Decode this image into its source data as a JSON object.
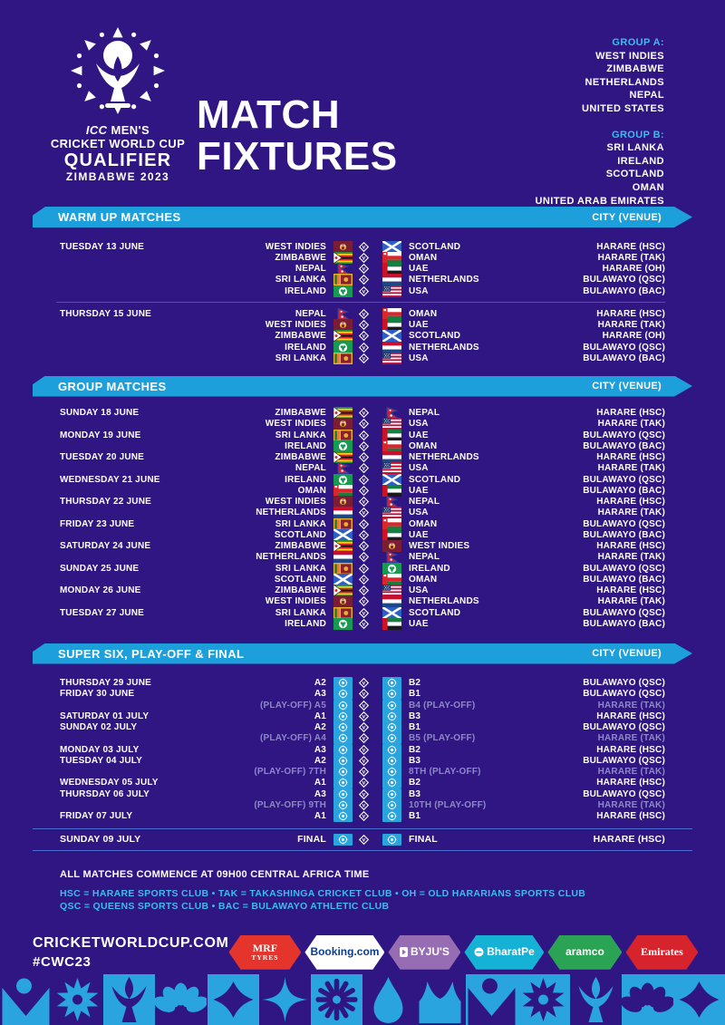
{
  "page": {
    "background": "#301683",
    "accent_cyan": "#1d9fdc",
    "cyan_text": "#3cbcee"
  },
  "header": {
    "logo": {
      "line1": "ICC MEN'S",
      "line2": "CRICKET WORLD CUP",
      "line3": "QUALIFIER",
      "line4": "ZIMBABWE 2023"
    },
    "title_line1": "MATCH",
    "title_line2": "FIXTURES",
    "groups": [
      {
        "label": "GROUP A:",
        "teams": [
          "WEST INDIES",
          "ZIMBABWE",
          "NETHERLANDS",
          "NEPAL",
          "UNITED STATES"
        ]
      },
      {
        "label": "GROUP B:",
        "teams": [
          "SRI LANKA",
          "IRELAND",
          "SCOTLAND",
          "OMAN",
          "UNITED ARAB EMIRATES"
        ]
      }
    ]
  },
  "sections": [
    {
      "title": "WARM UP MATCHES",
      "venue_header": "CITY (VENUE)",
      "blocks": [
        [
          {
            "date": "TUESDAY 13 JUNE",
            "home": "WEST INDIES",
            "hf": "WIN",
            "af": "SCO",
            "away": "SCOTLAND",
            "venue": "HARARE (HSC)"
          },
          {
            "date": "",
            "home": "ZIMBABWE",
            "hf": "ZIM",
            "af": "OMA",
            "away": "OMAN",
            "venue": "HARARE (TAK)"
          },
          {
            "date": "",
            "home": "NEPAL",
            "hf": "NEP",
            "af": "UAE",
            "away": "UAE",
            "venue": "HARARE (OH)"
          },
          {
            "date": "",
            "home": "SRI LANKA",
            "hf": "SRI",
            "af": "NED",
            "away": "NETHERLANDS",
            "venue": "BULAWAYO (QSC)"
          },
          {
            "date": "",
            "home": "IRELAND",
            "hf": "IRE",
            "af": "USA",
            "away": "USA",
            "venue": "BULAWAYO (BAC)"
          }
        ],
        [
          {
            "date": "THURSDAY 15 JUNE",
            "home": "NEPAL",
            "hf": "NEP",
            "af": "OMA",
            "away": "OMAN",
            "venue": "HARARE (HSC)"
          },
          {
            "date": "",
            "home": "WEST INDIES",
            "hf": "WIN",
            "af": "UAE",
            "away": "UAE",
            "venue": "HARARE (TAK)"
          },
          {
            "date": "",
            "home": "ZIMBABWE",
            "hf": "ZIM",
            "af": "SCO",
            "away": "SCOTLAND",
            "venue": "HARARE (OH)"
          },
          {
            "date": "",
            "home": "IRELAND",
            "hf": "IRE",
            "af": "NED",
            "away": "NETHERLANDS",
            "venue": "BULAWAYO (QSC)"
          },
          {
            "date": "",
            "home": "SRI LANKA",
            "hf": "SRI",
            "af": "USA",
            "away": "USA",
            "venue": "BULAWAYO (BAC)"
          }
        ]
      ]
    },
    {
      "title": "GROUP MATCHES",
      "venue_header": "CITY (VENUE)",
      "blocks": [
        [
          {
            "date": "SUNDAY 18 JUNE",
            "home": "ZIMBABWE",
            "hf": "ZIM",
            "af": "NEP",
            "away": "NEPAL",
            "venue": "HARARE (HSC)"
          },
          {
            "date": "",
            "home": "WEST INDIES",
            "hf": "WIN",
            "af": "USA",
            "away": "USA",
            "venue": "HARARE (TAK)"
          },
          {
            "date": "MONDAY 19 JUNE",
            "home": "SRI LANKA",
            "hf": "SRI",
            "af": "UAE",
            "away": "UAE",
            "venue": "BULAWAYO (QSC)"
          },
          {
            "date": "",
            "home": "IRELAND",
            "hf": "IRE",
            "af": "OMA",
            "away": "OMAN",
            "venue": "BULAWAYO (BAC)"
          },
          {
            "date": "TUESDAY 20 JUNE",
            "home": "ZIMBABWE",
            "hf": "ZIM",
            "af": "NED",
            "away": "NETHERLANDS",
            "venue": "HARARE (HSC)"
          },
          {
            "date": "",
            "home": "NEPAL",
            "hf": "NEP",
            "af": "USA",
            "away": "USA",
            "venue": "HARARE (TAK)"
          },
          {
            "date": "WEDNESDAY 21 JUNE",
            "home": "IRELAND",
            "hf": "IRE",
            "af": "SCO",
            "away": "SCOTLAND",
            "venue": "BULAWAYO (QSC)"
          },
          {
            "date": "",
            "home": "OMAN",
            "hf": "OMA",
            "af": "UAE",
            "away": "UAE",
            "venue": "BULAWAYO (BAC)"
          },
          {
            "date": "THURSDAY 22 JUNE",
            "home": "WEST INDIES",
            "hf": "WIN",
            "af": "NEP",
            "away": "NEPAL",
            "venue": "HARARE (HSC)"
          },
          {
            "date": "",
            "home": "NETHERLANDS",
            "hf": "NED",
            "af": "USA",
            "away": "USA",
            "venue": "HARARE (TAK)"
          },
          {
            "date": "FRIDAY 23 JUNE",
            "home": "SRI LANKA",
            "hf": "SRI",
            "af": "OMA",
            "away": "OMAN",
            "venue": "BULAWAYO (QSC)"
          },
          {
            "date": "",
            "home": "SCOTLAND",
            "hf": "SCO",
            "af": "UAE",
            "away": "UAE",
            "venue": "BULAWAYO (BAC)"
          },
          {
            "date": "SATURDAY 24 JUNE",
            "home": "ZIMBABWE",
            "hf": "ZIM",
            "af": "WIN",
            "away": "WEST INDIES",
            "venue": "HARARE (HSC)"
          },
          {
            "date": "",
            "home": "NETHERLANDS",
            "hf": "NED",
            "af": "NEP",
            "away": "NEPAL",
            "venue": "HARARE (TAK)"
          },
          {
            "date": "SUNDAY 25 JUNE",
            "home": "SRI LANKA",
            "hf": "SRI",
            "af": "IRE",
            "away": "IRELAND",
            "venue": "BULAWAYO (QSC)"
          },
          {
            "date": "",
            "home": "SCOTLAND",
            "hf": "SCO",
            "af": "OMA",
            "away": "OMAN",
            "venue": "BULAWAYO (BAC)"
          },
          {
            "date": "MONDAY 26 JUNE",
            "home": "ZIMBABWE",
            "hf": "ZIM",
            "af": "USA",
            "away": "USA",
            "venue": "HARARE (HSC)"
          },
          {
            "date": "",
            "home": "WEST INDIES",
            "hf": "WIN",
            "af": "NED",
            "away": "NETHERLANDS",
            "venue": "HARARE (TAK)"
          },
          {
            "date": "TUESDAY 27 JUNE",
            "home": "SRI LANKA",
            "hf": "SRI",
            "af": "SCO",
            "away": "SCOTLAND",
            "venue": "BULAWAYO (QSC)"
          },
          {
            "date": "",
            "home": "IRELAND",
            "hf": "IRE",
            "af": "UAE",
            "away": "UAE",
            "venue": "BULAWAYO (BAC)"
          }
        ]
      ]
    },
    {
      "title": "SUPER SIX, PLAY-OFF & FINAL",
      "venue_header": "CITY (VENUE)",
      "blocks": [
        [
          {
            "date": "THURSDAY 29 JUNE",
            "home": "A2",
            "hf": "TBD",
            "af": "TBD",
            "away": "B2",
            "venue": "BULAWAYO (QSC)"
          },
          {
            "date": "FRIDAY 30 JUNE",
            "home": "A3",
            "hf": "TBD",
            "af": "TBD",
            "away": "B1",
            "venue": "BULAWAYO (QSC)"
          },
          {
            "date": "",
            "home": "(PLAY-OFF) A5",
            "hf": "TBD",
            "af": "TBD",
            "away": "B4 (PLAY-OFF)",
            "venue": "HARARE (TAK)",
            "dim": true
          },
          {
            "date": "SATURDAY 01 JULY",
            "home": "A1",
            "hf": "TBD",
            "af": "TBD",
            "away": "B3",
            "venue": "HARARE (HSC)"
          },
          {
            "date": "SUNDAY 02 JULY",
            "home": "A2",
            "hf": "TBD",
            "af": "TBD",
            "away": "B1",
            "venue": "BULAWAYO (QSC)"
          },
          {
            "date": "",
            "home": "(PLAY-OFF) A4",
            "hf": "TBD",
            "af": "TBD",
            "away": "B5 (PLAY-OFF)",
            "venue": "HARARE (TAK)",
            "dim": true
          },
          {
            "date": "MONDAY 03 JULY",
            "home": "A3",
            "hf": "TBD",
            "af": "TBD",
            "away": "B2",
            "venue": "HARARE (HSC)"
          },
          {
            "date": "TUESDAY 04 JULY",
            "home": "A2",
            "hf": "TBD",
            "af": "TBD",
            "away": "B3",
            "venue": "BULAWAYO (QSC)"
          },
          {
            "date": "",
            "home": "(PLAY-OFF) 7TH",
            "hf": "TBD",
            "af": "TBD",
            "away": "8TH (PLAY-OFF)",
            "venue": "HARARE (TAK)",
            "dim": true
          },
          {
            "date": "WEDNESDAY 05 JULY",
            "home": "A1",
            "hf": "TBD",
            "af": "TBD",
            "away": "B2",
            "venue": "HARARE (HSC)"
          },
          {
            "date": "THURSDAY 06 JULY",
            "home": "A3",
            "hf": "TBD",
            "af": "TBD",
            "away": "B3",
            "venue": "BULAWAYO (QSC)"
          },
          {
            "date": "",
            "home": "(PLAY-OFF) 9TH",
            "hf": "TBD",
            "af": "TBD",
            "away": "10TH (PLAY-OFF)",
            "venue": "HARARE (TAK)",
            "dim": true
          },
          {
            "date": "FRIDAY 07 JULY",
            "home": "A1",
            "hf": "TBD",
            "af": "TBD",
            "away": "B1",
            "venue": "HARARE (HSC)"
          }
        ]
      ],
      "final": {
        "date": "SUNDAY 09 JULY",
        "home": "FINAL",
        "hf": "TBD",
        "af": "TBD",
        "away": "FINAL",
        "venue": "HARARE (HSC)"
      }
    }
  ],
  "footer": {
    "note": "ALL MATCHES COMMENCE AT 09H00 CENTRAL AFRICA TIME",
    "legend_line1": "HSC = HARARE SPORTS CLUB  •  TAK = TAKASHINGA CRICKET CLUB  •  OH = OLD HARARIANS SPORTS CLUB",
    "legend_line2": "QSC = QUEENS SPORTS CLUB  •  BAC = BULAWAYO ATHLETIC CLUB",
    "website": "CRICKETWORLDCUP.COM",
    "hashtag": "#CWC23"
  },
  "sponsors": [
    {
      "name": "MRF Tyres",
      "bg": "#e5342b",
      "color": "#ffffff",
      "line1": "MRF",
      "line2": "TYRES",
      "serif": true,
      "width": 80
    },
    {
      "name": "Booking.com",
      "bg": "#ffffff",
      "color": "#0b3d91",
      "line1": "Booking.com",
      "width": 88
    },
    {
      "name": "BYJU'S",
      "bg": "#966db2",
      "color": "#ffffff",
      "line1": "BYJU'S",
      "icon": "byjus-icon",
      "width": 80
    },
    {
      "name": "BharatPe",
      "bg": "#16b2d5",
      "color": "#ffffff",
      "line1": "BharatPe",
      "icon": "bharatpe-icon",
      "width": 88
    },
    {
      "name": "aramco",
      "bg": "#2ba355",
      "color": "#ffffff",
      "line1": "aramco",
      "width": 82
    },
    {
      "name": "Emirates",
      "bg": "#d7232b",
      "color": "#ffffff",
      "line1": "Emirates",
      "serif": true,
      "width": 80
    }
  ],
  "band": {
    "blue": "#2aa4de",
    "purple": "#301683",
    "glyphs": [
      "v-dot",
      "sun",
      "trophy",
      "flower",
      "diamond",
      "star4",
      "asterisk",
      "drop",
      "crown"
    ],
    "tile_bgs": [
      "P",
      "P",
      "B",
      "P",
      "B",
      "P",
      "B",
      "P",
      "P",
      "B",
      "B",
      "P",
      "B",
      "B",
      "P"
    ]
  },
  "icons": {
    "vs": "vs-diamond-icon",
    "flag_placeholder": "qualifier-crest-icon"
  }
}
